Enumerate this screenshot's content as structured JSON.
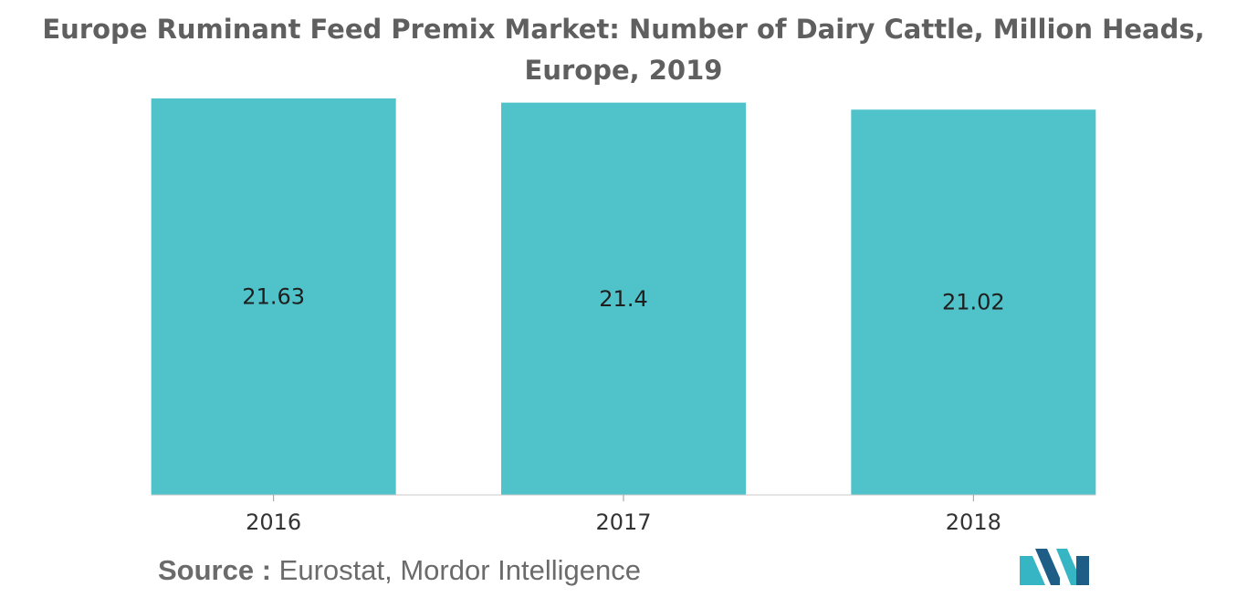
{
  "title": "Europe Ruminant Feed Premix Market: Number of Dairy Cattle, Million Heads, Europe, 2019",
  "source": {
    "label": "Source :",
    "text": "Eurostat, Mordor Intelligence"
  },
  "colors": {
    "bar": "#50c2c9",
    "logo_dark": "#1d5d86",
    "logo_light": "#36b6c5"
  },
  "logo": {
    "icon": "mordor-intelligence-logo-icon"
  },
  "chart_data": {
    "type": "bar",
    "categories": [
      "2016",
      "2017",
      "2018"
    ],
    "values": [
      21.63,
      21.4,
      21.02
    ],
    "data_labels": [
      "21.63",
      "21.4",
      "21.02"
    ],
    "title": "Europe Ruminant Feed Premix Market: Number of Dairy Cattle, Million Heads, Europe, 2019",
    "xlabel": "",
    "ylabel": "",
    "ylim": [
      0,
      21.63
    ],
    "grid": false,
    "legend": "none"
  }
}
